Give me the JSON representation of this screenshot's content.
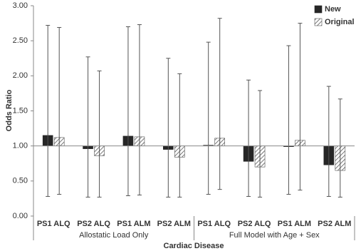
{
  "chart_data": {
    "type": "bar",
    "y_label": "Odds Ratio",
    "x_label": "Cardiac Disease",
    "categories": [
      "PS1 ALQ",
      "PS2 ALQ",
      "PS1 ALM",
      "PS2 ALM",
      "PS1 ALQ",
      "PS2 ALQ",
      "PS1 ALM",
      "PS2 ALM"
    ],
    "groups": [
      {
        "label": "Allostatic Load Only",
        "size": 4
      },
      {
        "label": "Full Model with Age + Sex",
        "size": 4
      }
    ],
    "bar_origin": 1,
    "series": [
      {
        "name": "New",
        "color": "#262626",
        "pattern": "solid",
        "values": [
          1.15,
          0.96,
          1.14,
          0.95,
          1.01,
          0.78,
          0.99,
          0.73
        ],
        "lower": [
          0.28,
          0.27,
          0.29,
          0.27,
          0.31,
          0.28,
          0.31,
          0.28
        ],
        "upper": [
          2.72,
          2.27,
          2.7,
          2.25,
          2.48,
          1.94,
          2.43,
          1.85
        ]
      },
      {
        "name": "Original",
        "color": "#555555",
        "pattern": "hatch",
        "values": [
          1.12,
          0.86,
          1.13,
          0.84,
          1.11,
          0.7,
          1.08,
          0.65
        ],
        "lower": [
          0.31,
          0.27,
          0.3,
          0.27,
          0.38,
          0.27,
          0.37,
          0.27
        ],
        "upper": [
          2.69,
          2.07,
          2.73,
          2.03,
          2.82,
          1.79,
          2.75,
          1.67
        ]
      }
    ],
    "ylim": [
      0,
      3
    ],
    "yticks": [
      {
        "value": 0,
        "label": "0.00"
      },
      {
        "value": 0.5,
        "label": "0.50"
      },
      {
        "value": 1,
        "label": "1.00"
      },
      {
        "value": 1.5,
        "label": "1.50"
      },
      {
        "value": 2,
        "label": "2.00"
      },
      {
        "value": 2.5,
        "label": "2.50"
      },
      {
        "value": 3,
        "label": "3.00"
      }
    ],
    "legend": "top-right"
  }
}
